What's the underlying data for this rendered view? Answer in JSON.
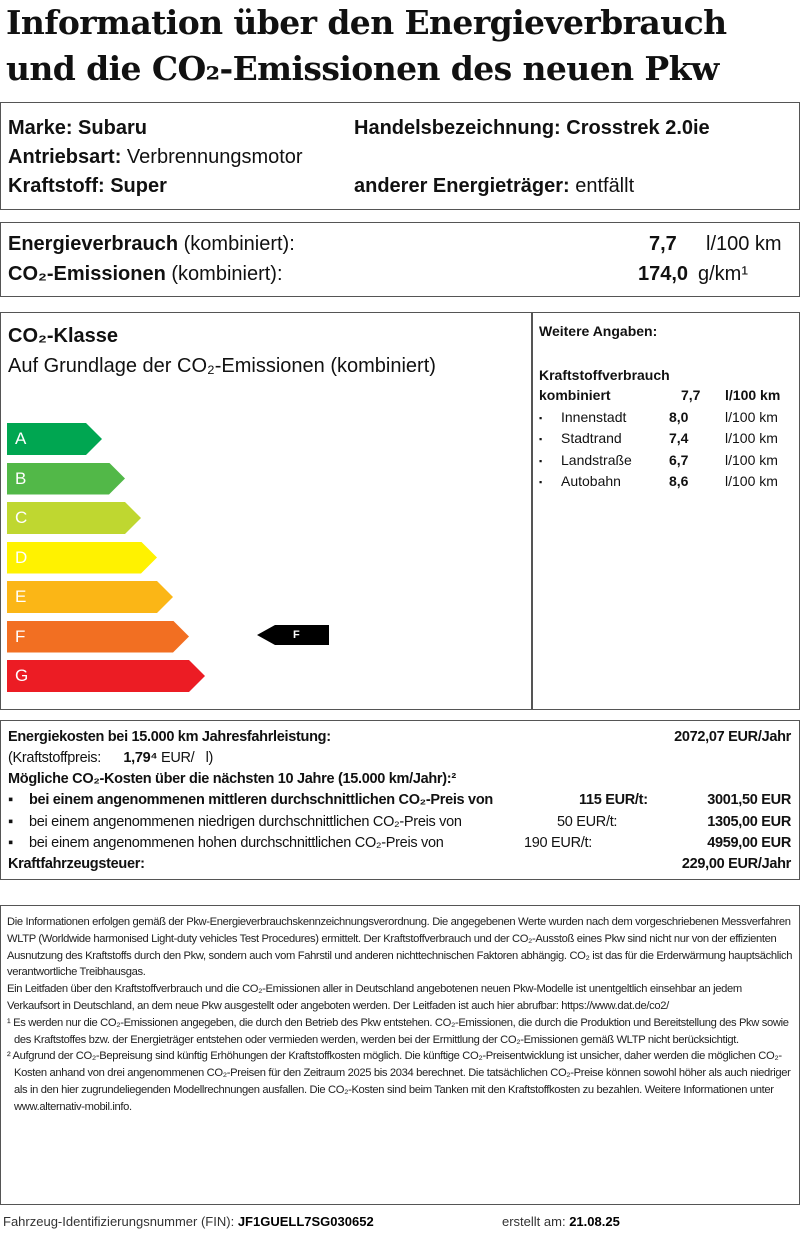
{
  "title_line1": "Information über den Energieverbrauch",
  "title_line2": "und die CO₂-Emissionen des neuen Pkw",
  "vehicle": {
    "marke_label": "Marke:",
    "marke": "Subaru",
    "handels_label": "Handelsbezeichnung:",
    "handels": "Crosstrek 2.0ie",
    "antrieb_label": "Antriebsart:",
    "antrieb": "Verbrennungsmotor",
    "kraftstoff_label": "Kraftstoff:",
    "kraftstoff": "Super",
    "andere_label": "anderer Energieträger:",
    "andere": "entfällt"
  },
  "consumption": {
    "energie_label": "Energieverbrauch",
    "kombiniert": "(kombiniert):",
    "energie_value": "7,7",
    "energie_unit": "l/100 km",
    "co2_label": "CO₂-Emissionen",
    "co2_value": "174,0",
    "co2_unit": "g/km¹"
  },
  "co2_class": {
    "heading": "CO₂-Klasse",
    "subheading": "Auf Grundlage der CO₂-Emissionen (kombiniert)",
    "classes": [
      "A",
      "B",
      "C",
      "D",
      "E",
      "F",
      "G"
    ],
    "colors": [
      "#00a651",
      "#52b848",
      "#bfd730",
      "#fff200",
      "#fbb616",
      "#f26f22",
      "#ec1c24"
    ],
    "current": "F"
  },
  "weitere": {
    "heading": "Weitere Angaben:",
    "sub": "Kraftstoffverbrauch",
    "rows": [
      {
        "label": "kombiniert",
        "value": "7,7",
        "unit": "l/100 km"
      },
      {
        "label": "Innenstadt",
        "value": "8,0",
        "unit": "l/100 km"
      },
      {
        "label": "Stadtrand",
        "value": "7,4",
        "unit": "l/100 km"
      },
      {
        "label": "Landstraße",
        "value": "6,7",
        "unit": "l/100 km"
      },
      {
        "label": "Autobahn",
        "value": "8,6",
        "unit": "l/100 km"
      }
    ]
  },
  "costs": {
    "energie_label": "Energiekosten bei 15.000 km Jahresfahrleistung:",
    "energie_value": "2072,07 EUR/Jahr",
    "preis_label": "(Kraftstoffpreis:",
    "preis_value": "1,79⁴",
    "preis_unit": "EUR/   l)",
    "co2_heading": "Mögliche CO₂-Kosten über die nächsten 10 Jahre (15.000 km/Jahr):²",
    "rows": [
      {
        "text": "bei einem angenommenen mittleren durchschnittlichen CO₂-Preis von",
        "price": "115  EUR/t:",
        "value": "3001,50 EUR"
      },
      {
        "text": "bei einem angenommenen niedrigen durchschnittlichen CO₂-Preis von",
        "price": "50  EUR/t:",
        "value": "1305,00 EUR"
      },
      {
        "text": "bei einem angenommenen hohen durchschnittlichen CO₂-Preis von",
        "price": "190  EUR/t:",
        "value": "4959,00 EUR"
      }
    ],
    "steuer_label": "Kraftfahrzeugsteuer:",
    "steuer_value": "229,00 EUR/Jahr"
  },
  "notes": [
    "Die Informationen erfolgen gemäß der Pkw-Energieverbrauchskennzeichnungsverordnung. Die angegebenen Werte wurden nach dem vorgeschriebenen Messverfahren WLTP (Worldwide harmonised Light-duty vehicles Test Procedures) ermittelt. Der Kraftstoffverbrauch und der CO₂-Ausstoß eines Pkw sind nicht nur von der effizienten Ausnutzung des Kraftstoffs durch den Pkw, sondern auch vom Fahrstil und anderen nichttechnischen Faktoren abhängig. CO₂ ist das für die Erderwärmung hauptsächlich verantwortliche Treibhausgas.",
    "Ein Leitfaden über den Kraftstoffverbrauch und die CO₂-Emissionen aller in Deutschland angebotenen neuen Pkw-Modelle ist unentgeltlich einsehbar an jedem Verkaufsort in Deutschland, an dem neue Pkw ausgestellt oder angeboten werden. Der Leitfaden ist auch hier abrufbar:   https://www.dat.de/co2/",
    "¹ Es werden nur die CO₂-Emissionen angegeben, die durch den Betrieb des Pkw entstehen. CO₂-Emissionen, die durch die Produktion und Bereitstellung des Pkw sowie des Kraftstoffes bzw. der Energieträger entstehen oder vermieden werden, werden bei der Ermittlung der CO₂-Emissionen gemäß WLTP nicht berücksichtigt.",
    "² Aufgrund der CO₂-Bepreisung sind künftig Erhöhungen der Kraftstoffkosten möglich. Die künftige CO₂-Preisentwicklung ist unsicher, daher werden die möglichen CO₂-Kosten anhand von drei angenommenen CO₂-Preisen für den Zeitraum  2025  bis  2034   berechnet. Die tatsächlichen CO₂-Preise können sowohl höher als auch niedriger als in den hier zugrundeliegenden Modellrechnungen ausfallen. Die CO₂-Kosten sind beim Tanken mit den Kraftstoffkosten zu bezahlen. Weitere Informationen unter www.alternativ-mobil.info."
  ],
  "footer": {
    "fin_label": "Fahrzeug-Identifizierungsnummer (FIN):",
    "fin": "JF1GUELL7SG030652",
    "erstellt_label": "erstellt am:",
    "erstellt": "21.08.25"
  }
}
